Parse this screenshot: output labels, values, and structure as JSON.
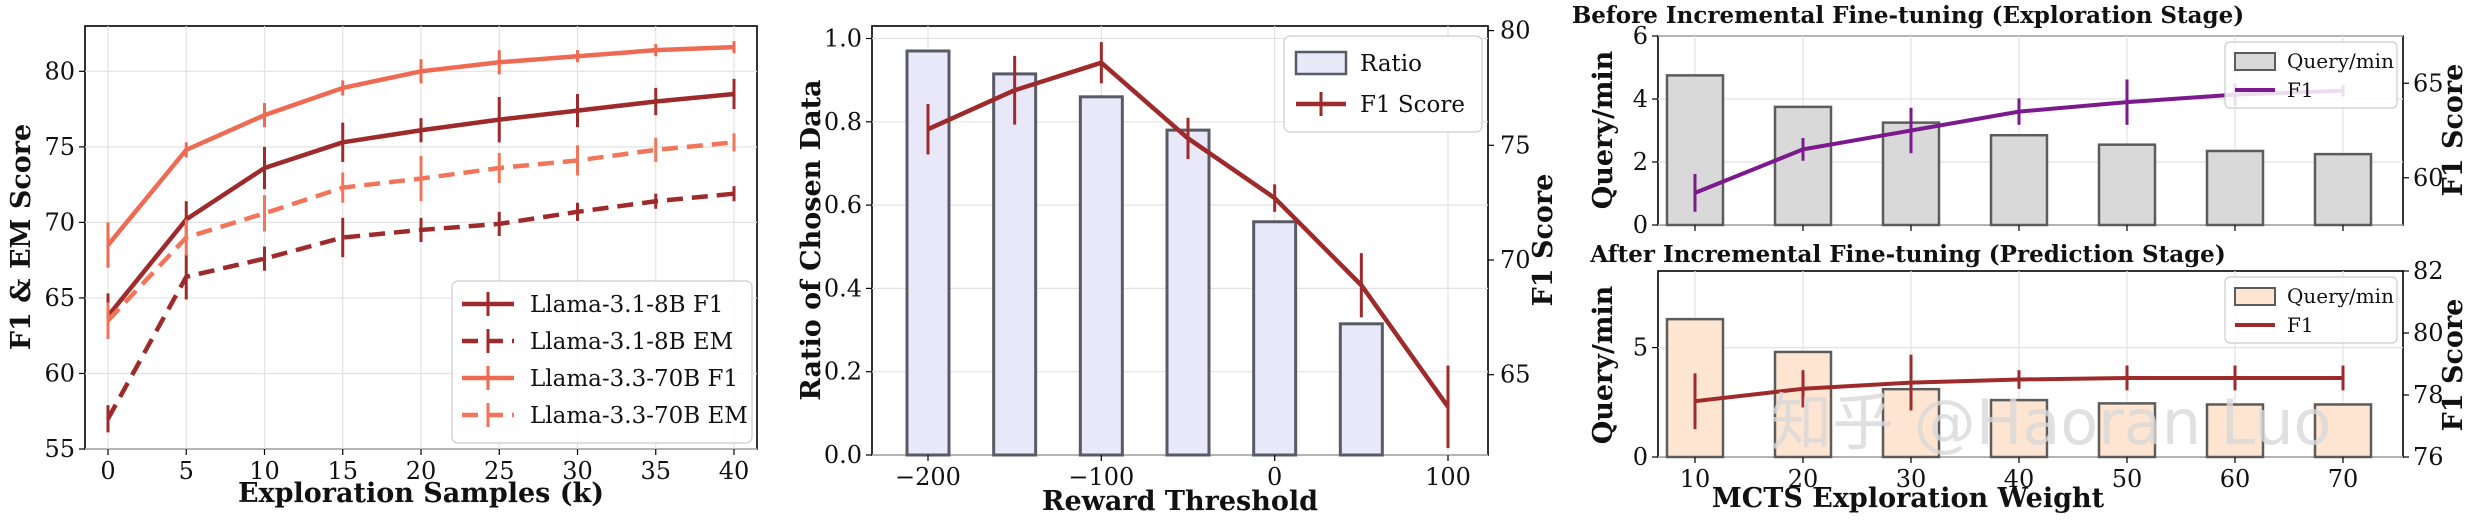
{
  "chart_data": [
    {
      "type": "line",
      "title": "",
      "xlabel": "Exploration Samples (k)",
      "ylabel": "F1 & EM Score",
      "x": [
        0,
        5,
        10,
        15,
        20,
        25,
        30,
        35,
        40
      ],
      "xticks": [
        "0",
        "5",
        "10",
        "15",
        "20",
        "25",
        "30",
        "35",
        "40"
      ],
      "yticks": [
        "55",
        "60",
        "65",
        "70",
        "75",
        "80"
      ],
      "ylim": [
        55,
        83
      ],
      "series": [
        {
          "name": "Llama-3.1-8B F1",
          "color": "#9e2a2b",
          "dashed": false,
          "values": [
            63.8,
            70.2,
            73.6,
            75.3,
            76.1,
            76.8,
            77.4,
            78.0,
            78.5
          ],
          "err": [
            1.5,
            1.2,
            1.4,
            1.3,
            0.8,
            1.5,
            1.1,
            0.9,
            1.0
          ]
        },
        {
          "name": "Llama-3.1-8B EM",
          "color": "#9e2a2b",
          "dashed": true,
          "values": [
            57.0,
            66.4,
            67.6,
            69.0,
            69.5,
            69.9,
            70.7,
            71.4,
            71.9
          ],
          "err": [
            0.9,
            1.5,
            0.8,
            1.3,
            0.8,
            0.8,
            0.6,
            0.5,
            0.5
          ]
        },
        {
          "name": "Llama-3.3-70B F1",
          "color": "#ee6a52",
          "dashed": false,
          "values": [
            68.5,
            74.8,
            77.1,
            78.9,
            80.0,
            80.6,
            81.0,
            81.4,
            81.6
          ],
          "err": [
            1.5,
            0.5,
            0.8,
            0.5,
            0.8,
            0.8,
            0.4,
            0.4,
            0.4
          ]
        },
        {
          "name": "Llama-3.3-70B EM",
          "color": "#f2745a",
          "dashed": true,
          "values": [
            63.5,
            69.0,
            70.6,
            72.3,
            72.9,
            73.6,
            74.1,
            74.8,
            75.3
          ],
          "err": [
            1.2,
            1.2,
            1.2,
            1.0,
            1.5,
            1.0,
            1.0,
            0.8,
            0.6
          ]
        }
      ],
      "legend": "lower-right"
    },
    {
      "type": "bar+line",
      "xlabel": "Reward Threshold",
      "ylabel": "Ratio of Chosen Data",
      "ylabel_right": "F1 Score",
      "x": [
        -200,
        -150,
        -100,
        -50,
        0,
        50,
        100
      ],
      "xticks": [
        "−200",
        "−100",
        "0",
        "100"
      ],
      "yticks": [
        "0.0",
        "0.2",
        "0.4",
        "0.6",
        "0.8",
        "1.0"
      ],
      "yticks_right": [
        "65",
        "70",
        "75",
        "80"
      ],
      "ylim": [
        0,
        1.03
      ],
      "ylim_right": [
        61.5,
        80.2
      ],
      "bars": {
        "name": "Ratio",
        "values": [
          0.97,
          0.915,
          0.86,
          0.78,
          0.56,
          0.315,
          0.0
        ]
      },
      "line": {
        "name": "F1 Score",
        "values": [
          75.7,
          77.4,
          78.6,
          75.3,
          72.7,
          68.9,
          63.6
        ],
        "err": [
          1.1,
          1.5,
          0.9,
          0.9,
          0.6,
          1.4,
          1.8
        ]
      },
      "legend": "top-right"
    },
    {
      "type": "bar+line",
      "title": "Before Incremental Fine-tuning (Exploration Stage)",
      "ylabel": "Query/min",
      "ylabel_right": "F1 Score",
      "x": [
        10,
        20,
        30,
        40,
        50,
        60,
        70
      ],
      "yticks": [
        "0",
        "2",
        "4",
        "6"
      ],
      "yticks_right": [
        "60",
        "65"
      ],
      "ylim": [
        0,
        6
      ],
      "ylim_right": [
        57.5,
        67.5
      ],
      "bars": {
        "name": "Query/min",
        "values": [
          4.75,
          3.75,
          3.25,
          2.85,
          2.55,
          2.35,
          2.25
        ]
      },
      "line": {
        "name": "F1",
        "values": [
          59.2,
          61.5,
          62.5,
          63.5,
          64.0,
          64.4,
          64.6
        ],
        "err": [
          1.0,
          0.6,
          1.2,
          0.7,
          1.2,
          0.6,
          0.3
        ]
      },
      "legend": "top-right"
    },
    {
      "type": "bar+line",
      "title": "After Incremental Fine-tuning (Prediction Stage)",
      "xlabel": "MCTS Exploration Weight",
      "ylabel": "Query/min",
      "ylabel_right": "F1 Score",
      "x": [
        10,
        20,
        30,
        40,
        50,
        60,
        70
      ],
      "xticks": [
        "10",
        "20",
        "30",
        "40",
        "50",
        "60",
        "70"
      ],
      "yticks": [
        "0",
        "5"
      ],
      "yticks_right": [
        "76",
        "78",
        "80",
        "82"
      ],
      "ylim": [
        0,
        8.5
      ],
      "ylim_right": [
        76,
        82
      ],
      "bars": {
        "name": "Query/min",
        "values": [
          6.3,
          4.8,
          3.1,
          2.6,
          2.45,
          2.4,
          2.4
        ]
      },
      "line": {
        "name": "F1",
        "values": [
          77.8,
          78.2,
          78.4,
          78.5,
          78.55,
          78.55,
          78.55
        ],
        "err": [
          0.9,
          0.6,
          0.9,
          0.3,
          0.4,
          0.4,
          0.4
        ]
      },
      "legend": "top-right"
    }
  ],
  "watermark": "知乎 @Haoran Luo"
}
